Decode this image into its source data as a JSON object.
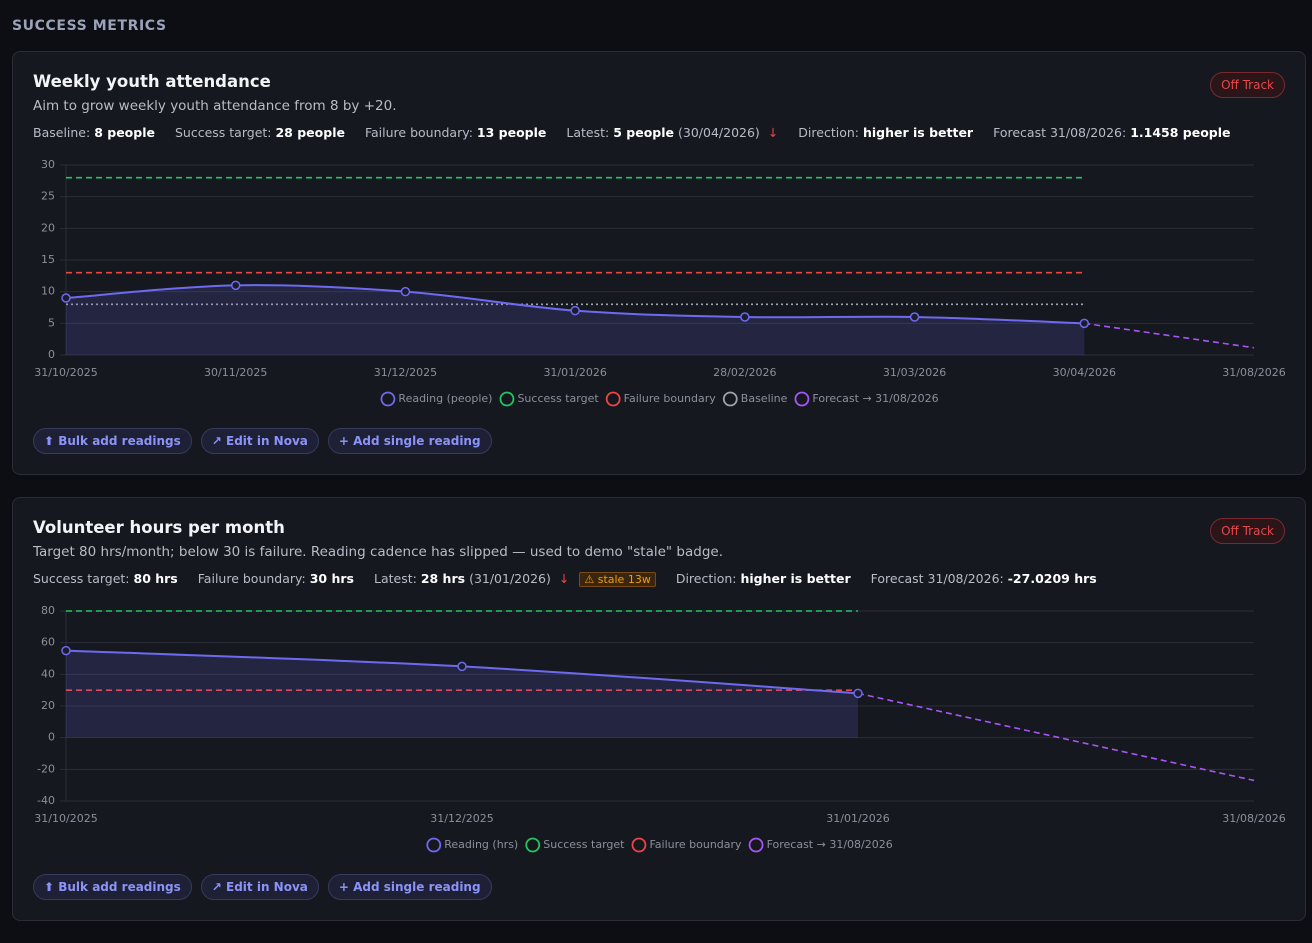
{
  "header": {
    "title": "SUCCESS METRICS"
  },
  "cards": [
    {
      "title": "Weekly youth attendance",
      "description": "Aim to grow weekly youth attendance from 8 by +20.",
      "status": "Off Track",
      "meta": [
        {
          "label": "Baseline:",
          "value": "8 people"
        },
        {
          "label": "Success target:",
          "value": "28 people"
        },
        {
          "label": "Failure boundary:",
          "value": "13 people"
        },
        {
          "label": "Latest:",
          "value": "5 people",
          "note": "(30/04/2026)",
          "arrow": "↓"
        },
        {
          "label": "Direction:",
          "value": "higher is better"
        },
        {
          "label": "Forecast 31/08/2026:",
          "value": "1.1458 people"
        }
      ],
      "buttons": [
        "⬆ Bulk add readings",
        "↗ Edit in Nova",
        "+ Add single reading"
      ]
    },
    {
      "title": "Volunteer hours per month",
      "description": "Target 80 hrs/month; below 30 is failure. Reading cadence has slipped — used to demo \"stale\" badge.",
      "status": "Off Track",
      "meta": [
        {
          "label": "Success target:",
          "value": "80 hrs"
        },
        {
          "label": "Failure boundary:",
          "value": "30 hrs"
        },
        {
          "label": "Latest:",
          "value": "28 hrs",
          "note": "(31/01/2026)",
          "arrow": "↓",
          "badge": "⚠ stale 13w"
        },
        {
          "label": "Direction:",
          "value": "higher is better"
        },
        {
          "label": "Forecast 31/08/2026:",
          "value": "-27.0209 hrs"
        }
      ],
      "buttons": [
        "⬆ Bulk add readings",
        "↗ Edit in Nova",
        "+ Add single reading"
      ]
    }
  ],
  "chart_data": [
    {
      "type": "line",
      "categories": [
        "31/10/2025",
        "30/11/2025",
        "31/12/2025",
        "31/01/2026",
        "28/02/2026",
        "31/03/2026",
        "30/04/2026",
        "31/08/2026"
      ],
      "ylim": [
        0,
        30
      ],
      "yticks": [
        0,
        5,
        10,
        15,
        20,
        25,
        30
      ],
      "grid": true,
      "series": [
        {
          "name": "Reading (people)",
          "color": "#6e6af0",
          "style": "solid",
          "curve": "smooth",
          "fill": true,
          "markers": true,
          "values": [
            9,
            11,
            10,
            7,
            6,
            6,
            5,
            null
          ]
        },
        {
          "name": "Success target",
          "color": "#22c55e",
          "style": "dashed",
          "values": [
            28,
            28,
            28,
            28,
            28,
            28,
            28,
            null
          ]
        },
        {
          "name": "Failure boundary",
          "color": "#ef4444",
          "style": "dashed",
          "values": [
            13,
            13,
            13,
            13,
            13,
            13,
            13,
            null
          ]
        },
        {
          "name": "Baseline",
          "color": "#9ca3af",
          "style": "dotted",
          "values": [
            8,
            8,
            8,
            8,
            8,
            8,
            8,
            null
          ]
        },
        {
          "name": "Forecast → 31/08/2026",
          "color": "#a855f7",
          "style": "dashed",
          "values": [
            null,
            null,
            null,
            null,
            null,
            null,
            5,
            1.1458
          ]
        }
      ]
    },
    {
      "type": "line",
      "categories": [
        "31/10/2025",
        "31/12/2025",
        "31/01/2026",
        "31/08/2026"
      ],
      "ylim": [
        -40,
        80
      ],
      "yticks": [
        -40,
        -20,
        0,
        20,
        40,
        60,
        80
      ],
      "grid": true,
      "series": [
        {
          "name": "Reading (hrs)",
          "color": "#6e6af0",
          "style": "solid",
          "curve": "smooth",
          "fill": true,
          "markers": true,
          "values": [
            55,
            45,
            28,
            null
          ]
        },
        {
          "name": "Success target",
          "color": "#22c55e",
          "style": "dashed",
          "values": [
            80,
            80,
            80,
            null
          ]
        },
        {
          "name": "Failure boundary",
          "color": "#ef4444",
          "style": "dashed",
          "values": [
            30,
            30,
            30,
            null
          ]
        },
        {
          "name": "Forecast → 31/08/2026",
          "color": "#a855f7",
          "style": "dashed",
          "values": [
            null,
            null,
            28,
            -27.0209
          ]
        }
      ]
    }
  ]
}
